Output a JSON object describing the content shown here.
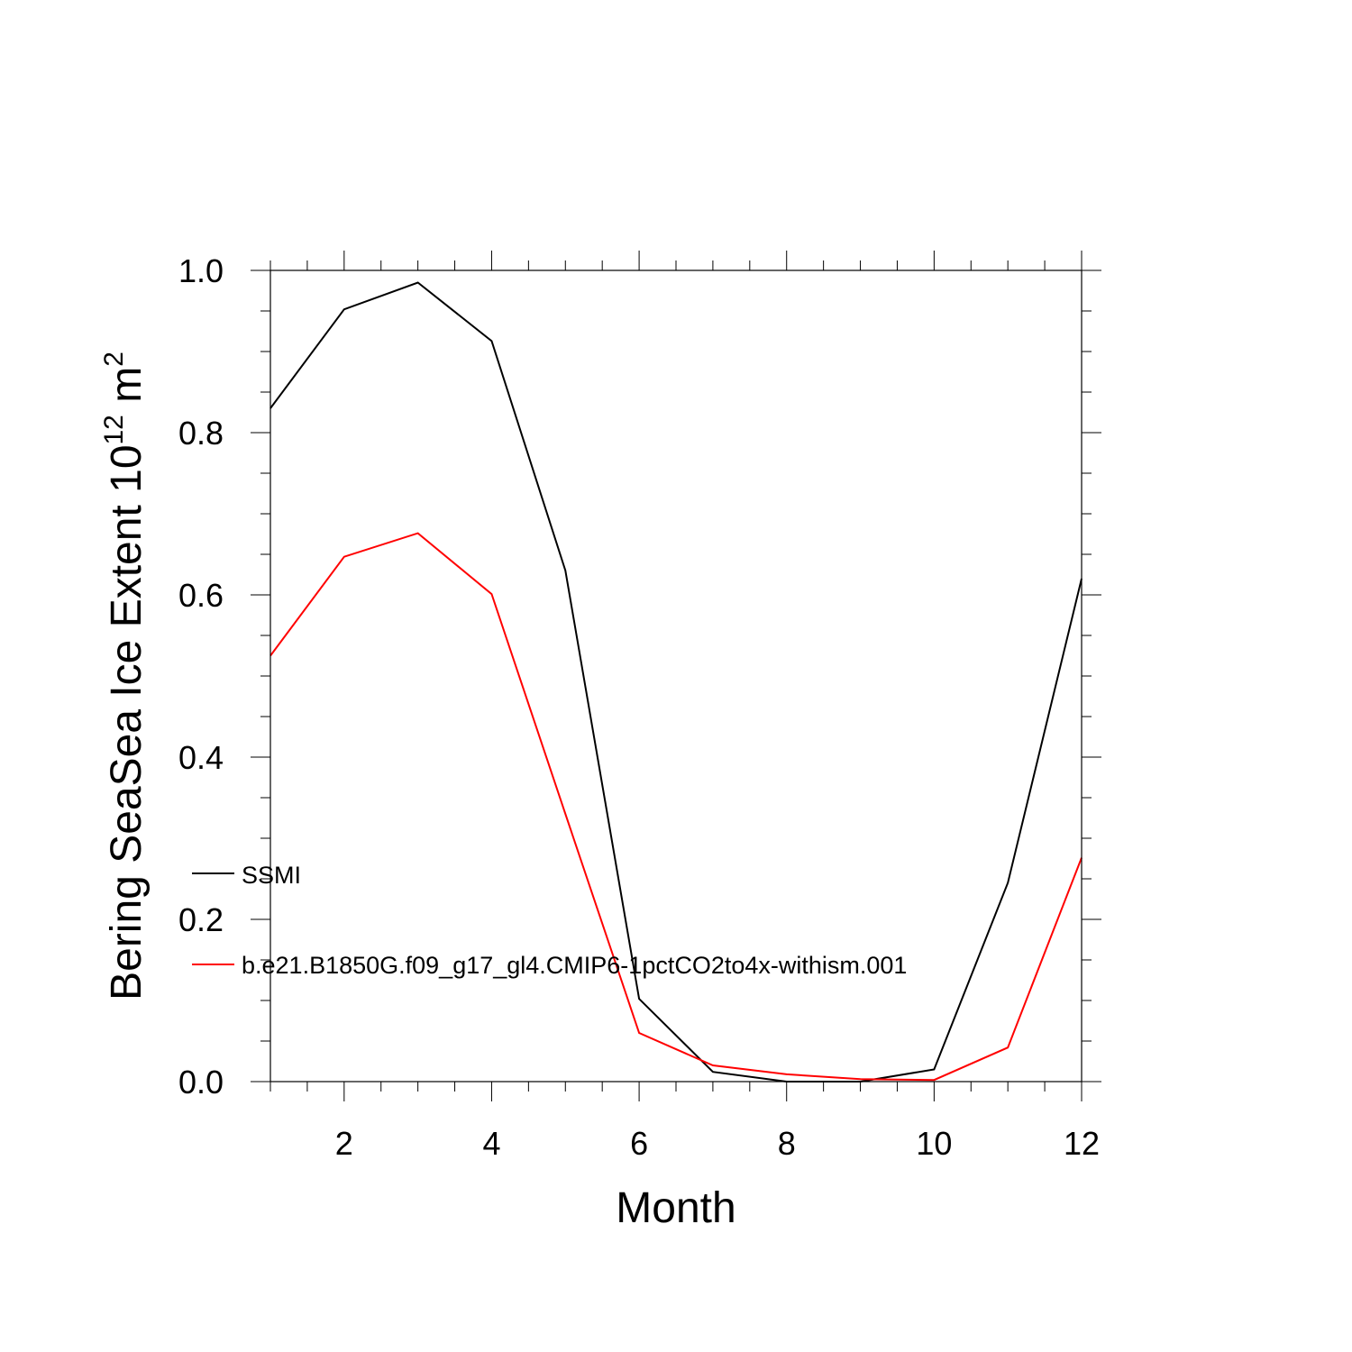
{
  "chart_data": {
    "type": "line",
    "title": "",
    "xlabel": "Month",
    "ylabel": "Bering SeaSea Ice Extent 10",
    "ylabel_superscript": "12",
    "ylabel_unit": "m",
    "ylabel_unit_superscript": "2",
    "xlim": [
      1,
      12
    ],
    "ylim": [
      0.0,
      1.0
    ],
    "x_major_ticks": [
      2,
      4,
      6,
      8,
      10,
      12
    ],
    "x_minor_step": 0.5,
    "y_major_ticks": [
      0.0,
      0.2,
      0.4,
      0.6,
      0.8,
      1.0
    ],
    "y_tick_labels": [
      "0.0",
      "0.2",
      "0.4",
      "0.6",
      "0.8",
      "1.0"
    ],
    "y_minor_step": 0.05,
    "grid": false,
    "legend_position": "lower-left-inside",
    "x": [
      1,
      2,
      3,
      4,
      5,
      6,
      7,
      8,
      9,
      10,
      11,
      12
    ],
    "series": [
      {
        "name": "SSMI",
        "color": "#000000",
        "values": [
          0.83,
          0.952,
          0.985,
          0.913,
          0.63,
          0.102,
          0.012,
          0.0,
          0.0,
          0.015,
          0.245,
          0.62
        ]
      },
      {
        "name": "b.e21.B1850G.f09_g17_gl4.CMIP6-1pctCO2to4x-withism.001",
        "color": "#ff0000",
        "values": [
          0.525,
          0.647,
          0.676,
          0.601,
          0.33,
          0.06,
          0.02,
          0.009,
          0.003,
          0.002,
          0.042,
          0.276
        ]
      }
    ]
  }
}
